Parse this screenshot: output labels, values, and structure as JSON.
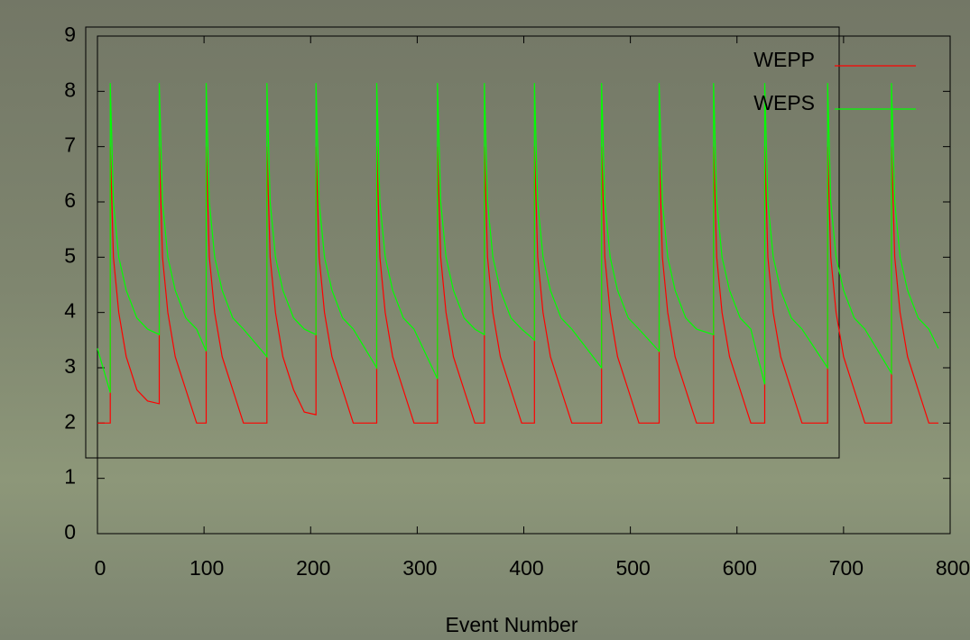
{
  "chart_data": {
    "type": "line",
    "xlabel": "Event Number",
    "x": [
      0,
      12,
      12,
      15,
      20,
      27,
      37,
      47,
      58,
      58,
      61,
      66,
      73,
      83,
      93,
      102,
      102,
      105,
      110,
      117,
      127,
      137,
      159,
      159,
      162,
      167,
      174,
      184,
      194,
      205,
      205,
      208,
      213,
      220,
      230,
      240,
      262,
      262,
      265,
      270,
      277,
      287,
      297,
      319,
      319,
      322,
      327,
      334,
      344,
      354,
      363,
      363,
      366,
      371,
      378,
      388,
      398,
      410,
      410,
      413,
      418,
      425,
      435,
      445,
      473,
      473,
      476,
      481,
      488,
      498,
      508,
      527,
      527,
      530,
      535,
      542,
      552,
      562,
      578,
      578,
      581,
      586,
      593,
      603,
      613,
      626,
      626,
      629,
      634,
      641,
      651,
      661,
      685,
      685,
      688,
      693,
      700,
      710,
      720,
      745,
      745,
      748,
      753,
      760,
      770,
      780,
      789
    ],
    "series": [
      {
        "name": "WEPP",
        "color": "#ff0000",
        "values": [
          2,
          2,
          7,
          5,
          4,
          3.2,
          2.6,
          2.4,
          2.35,
          7,
          5,
          4,
          3.2,
          2.6,
          2,
          2,
          7,
          5,
          4,
          3.2,
          2.6,
          2,
          2,
          7,
          5,
          4,
          3.2,
          2.6,
          2.2,
          2.15,
          7,
          5,
          4,
          3.2,
          2.6,
          2,
          2,
          7,
          5,
          4,
          3.2,
          2.6,
          2,
          2,
          7,
          5,
          4,
          3.2,
          2.6,
          2,
          2,
          7,
          5,
          4,
          3.2,
          2.6,
          2,
          2,
          7,
          5,
          4,
          3.2,
          2.6,
          2,
          2,
          7,
          5,
          4,
          3.2,
          2.6,
          2,
          2,
          7,
          5,
          4,
          3.2,
          2.6,
          2,
          2,
          7,
          5,
          4,
          3.2,
          2.6,
          2,
          2,
          7,
          5,
          4,
          3.2,
          2.6,
          2,
          2,
          7,
          5,
          4,
          3.2,
          2.6,
          2,
          2,
          7,
          5,
          4,
          3.2,
          2.6,
          2,
          2
        ]
      },
      {
        "name": "WEPS",
        "color": "#00ff00",
        "values": [
          3.35,
          2.55,
          8.15,
          6,
          5,
          4.4,
          3.9,
          3.7,
          3.6,
          8.15,
          6,
          5,
          4.4,
          3.9,
          3.7,
          3.3,
          8.15,
          6,
          5,
          4.4,
          3.9,
          3.7,
          3.2,
          8.15,
          6,
          5,
          4.4,
          3.9,
          3.7,
          3.6,
          8.15,
          6,
          5,
          4.4,
          3.9,
          3.7,
          3,
          8.15,
          6,
          5,
          4.4,
          3.9,
          3.7,
          2.8,
          8.15,
          6,
          5,
          4.4,
          3.9,
          3.7,
          3.6,
          8.15,
          6,
          5,
          4.4,
          3.9,
          3.7,
          3.5,
          8.15,
          6,
          5,
          4.4,
          3.9,
          3.7,
          3,
          8.15,
          6,
          5,
          4.4,
          3.9,
          3.7,
          3.3,
          8.15,
          6,
          5,
          4.4,
          3.9,
          3.7,
          3.6,
          8.15,
          6,
          5,
          4.4,
          3.9,
          3.7,
          2.7,
          8.15,
          6,
          5,
          4.4,
          3.9,
          3.7,
          3,
          8.15,
          6,
          5,
          4.4,
          3.9,
          3.7,
          2.9,
          8.15,
          6,
          5,
          4.4,
          3.9,
          3.7,
          3.35
        ]
      }
    ],
    "xlim": [
      0,
      800
    ],
    "ylim": [
      0,
      9
    ],
    "xticks": [
      0,
      100,
      200,
      300,
      400,
      500,
      600,
      700,
      800
    ],
    "yticks": [
      0,
      1,
      2,
      3,
      4,
      5,
      6,
      7,
      8,
      9
    ],
    "legend": "upper right"
  }
}
